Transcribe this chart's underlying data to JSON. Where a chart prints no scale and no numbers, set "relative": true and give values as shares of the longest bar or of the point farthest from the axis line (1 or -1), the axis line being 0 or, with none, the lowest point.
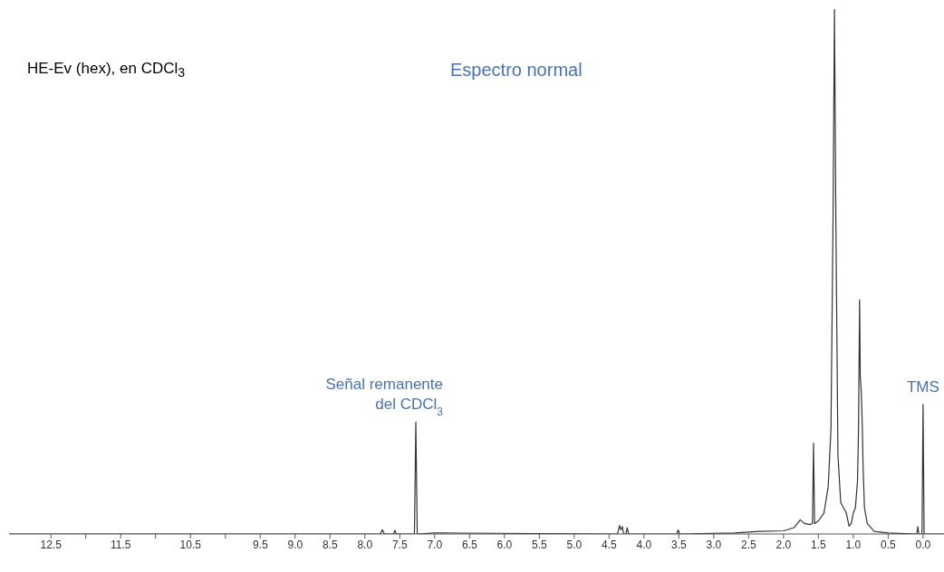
{
  "chart_data": {
    "type": "line",
    "relative": true,
    "title": "Espectro normal",
    "subtitle": "HE-Ev (hex), en CDCl$_{3}$",
    "annotations": [
      {
        "text": "Señal remanente\ndel CDCl$_{3}$",
        "x": 7.27,
        "y": 0.213
      },
      {
        "text": "TMS",
        "x": 0,
        "y": 0.247
      }
    ],
    "xlim": [
      13.1,
      -0.3
    ],
    "xticks": [
      12.5,
      {
        "value": 12,
        "label": null
      },
      11.5,
      {
        "value": 11,
        "label": null
      },
      10.5,
      {
        "value": 10,
        "label": null
      },
      9.5,
      {
        "value": 9,
        "label": "9.0"
      },
      8.5,
      {
        "value": 8,
        "label": "8.0"
      },
      7.5,
      {
        "value": 7,
        "label": "7.0"
      },
      6.5,
      {
        "value": 6,
        "label": "6.0"
      },
      5.5,
      {
        "value": 5,
        "label": "5.0"
      },
      4.5,
      {
        "value": 4,
        "label": "4.0"
      },
      3.5,
      {
        "value": 3,
        "label": "3.0"
      },
      2.5,
      {
        "value": 2,
        "label": "2.0"
      },
      1.5,
      {
        "value": 1,
        "label": "1.0"
      },
      0.5,
      {
        "value": 0,
        "label": "0.0"
      }
    ],
    "series": [
      {
        "color": "#333333",
        "x": [
          13.1,
          8.0,
          7.78,
          7.75,
          7.72,
          7.59,
          7.57,
          7.55,
          7.29,
          7.27,
          7.25,
          7.0,
          4.38,
          4.35,
          4.33,
          4.31,
          4.29,
          4.26,
          4.24,
          4.22,
          3.53,
          3.51,
          3.49,
          2.7,
          2.35,
          2.0,
          1.85,
          1.76,
          1.7,
          1.62,
          1.585,
          1.57,
          1.555,
          1.5,
          1.42,
          1.36,
          1.32,
          1.29,
          1.27,
          1.25,
          1.22,
          1.18,
          1.14,
          1.1,
          1.06,
          1.03,
          1.0,
          0.97,
          0.94,
          0.925,
          0.91,
          0.9,
          0.885,
          0.87,
          0.86,
          0.84,
          0.8,
          0.7,
          0.5,
          0.09,
          0.075,
          0.06,
          0.015,
          0.0,
          -0.015,
          -0.3
        ],
        "values": [
          0,
          0,
          0,
          0.008,
          0,
          0,
          0.007,
          0,
          0,
          0.213,
          0,
          0.002,
          0,
          0.016,
          0.008,
          0.014,
          0,
          0,
          0.012,
          0,
          0,
          0.008,
          0,
          0.002,
          0.005,
          0.006,
          0.012,
          0.027,
          0.02,
          0.018,
          0.02,
          0.173,
          0.02,
          0.025,
          0.04,
          0.09,
          0.2,
          0.6,
          1.0,
          0.6,
          0.15,
          0.06,
          0.05,
          0.04,
          0.015,
          0.02,
          0.04,
          0.05,
          0.1,
          0.2,
          0.446,
          0.3,
          0.27,
          0.2,
          0.13,
          0.05,
          0.02,
          0.005,
          0.002,
          0,
          0.014,
          0,
          0,
          0.247,
          0,
          0
        ]
      }
    ],
    "grid": false,
    "legend": false,
    "marker": "none",
    "line_style": "solid"
  }
}
